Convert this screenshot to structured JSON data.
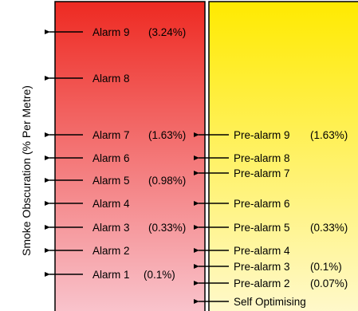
{
  "y_axis_label": "Smoke Obscuration  (% Per Metre)",
  "colors": {
    "alarm_top": "#ee2a22",
    "alarm_bottom": "#f9c6cf",
    "prealarm_top": "#ffea00",
    "prealarm_bottom": "#fff9ce",
    "stroke": "#000000"
  },
  "alarm_levels": [
    {
      "label": "Alarm 9",
      "value": "(3.24%)"
    },
    {
      "label": "Alarm 8",
      "value": ""
    },
    {
      "label": "Alarm 7",
      "value": "(1.63%)"
    },
    {
      "label": "Alarm 6",
      "value": ""
    },
    {
      "label": "Alarm 5",
      "value": "(0.98%)"
    },
    {
      "label": "Alarm 4",
      "value": ""
    },
    {
      "label": "Alarm 3",
      "value": "(0.33%)"
    },
    {
      "label": "Alarm 2",
      "value": ""
    },
    {
      "label": "Alarm 1",
      "value": "(0.1%)"
    }
  ],
  "prealarm_levels": [
    {
      "label": "Pre-alarm 9",
      "value": "(1.63%)"
    },
    {
      "label": "Pre-alarm 8",
      "value": ""
    },
    {
      "label": "Pre-alarm 7",
      "value": ""
    },
    {
      "label": "Pre-alarm 6",
      "value": ""
    },
    {
      "label": "Pre-alarm 5",
      "value": "(0.33%)"
    },
    {
      "label": "Pre-alarm 4",
      "value": ""
    },
    {
      "label": "Pre-alarm 3",
      "value": "(0.1%)"
    },
    {
      "label": "Pre-alarm 2",
      "value": "(0.07%)"
    },
    {
      "label": "Self Optimising",
      "value": ""
    }
  ]
}
